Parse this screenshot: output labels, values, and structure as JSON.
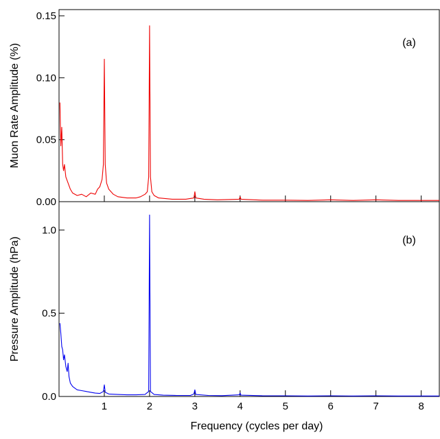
{
  "chart_data": [
    {
      "type": "line",
      "panel_tag": "(a)",
      "ylabel": "Muon Rate Amplitude (%)",
      "xlabel": "",
      "xlim": [
        0.0,
        8.4
      ],
      "ylim": [
        0.0,
        0.155
      ],
      "grid": false,
      "color": "#ee0000",
      "yticks": [
        {
          "value": 0.0,
          "label": "0.00"
        },
        {
          "value": 0.05,
          "label": "0.05"
        },
        {
          "value": 0.1,
          "label": "0.10"
        },
        {
          "value": 0.15,
          "label": "0.15"
        }
      ],
      "xticks": [
        1,
        2,
        3,
        4,
        5,
        6,
        7,
        8
      ],
      "series": [
        {
          "x": [
            0.02,
            0.04,
            0.06,
            0.08,
            0.1,
            0.12,
            0.15,
            0.2,
            0.25,
            0.3,
            0.4,
            0.5,
            0.6,
            0.7,
            0.8,
            0.85,
            0.9,
            0.95,
            0.98,
            1.0,
            1.02,
            1.05,
            1.1,
            1.2,
            1.3,
            1.5,
            1.7,
            1.8,
            1.9,
            1.95,
            1.98,
            2.0,
            2.02,
            2.05,
            2.1,
            2.2,
            2.5,
            2.8,
            2.98,
            3.0,
            3.02,
            3.2,
            3.5,
            3.98,
            4.0,
            4.02,
            4.5,
            5.0,
            5.5,
            6.0,
            6.5,
            7.0,
            7.5,
            8.0,
            8.4
          ],
          "y": [
            0.08,
            0.045,
            0.06,
            0.03,
            0.025,
            0.03,
            0.02,
            0.015,
            0.01,
            0.007,
            0.005,
            0.006,
            0.004,
            0.007,
            0.006,
            0.01,
            0.012,
            0.018,
            0.03,
            0.115,
            0.03,
            0.015,
            0.01,
            0.006,
            0.004,
            0.003,
            0.003,
            0.004,
            0.006,
            0.008,
            0.02,
            0.142,
            0.02,
            0.008,
            0.005,
            0.003,
            0.002,
            0.002,
            0.003,
            0.008,
            0.003,
            0.002,
            0.0015,
            0.002,
            0.004,
            0.002,
            0.0012,
            0.0012,
            0.001,
            0.0015,
            0.001,
            0.0015,
            0.001,
            0.001,
            0.001
          ]
        }
      ]
    },
    {
      "type": "line",
      "panel_tag": "(b)",
      "ylabel": "Pressure Amplitude (hPa)",
      "xlabel": "Frequency (cycles per day)",
      "xlim": [
        0.0,
        8.4
      ],
      "ylim": [
        0.0,
        1.17
      ],
      "grid": false,
      "color": "#0000ee",
      "yticks": [
        {
          "value": 0.0,
          "label": "0.0"
        },
        {
          "value": 0.5,
          "label": "0.5"
        },
        {
          "value": 1.0,
          "label": "1.0"
        }
      ],
      "xticks": [
        1,
        2,
        3,
        4,
        5,
        6,
        7,
        8
      ],
      "series": [
        {
          "x": [
            0.02,
            0.04,
            0.06,
            0.08,
            0.1,
            0.12,
            0.15,
            0.18,
            0.2,
            0.22,
            0.25,
            0.3,
            0.35,
            0.4,
            0.5,
            0.6,
            0.7,
            0.8,
            0.9,
            0.98,
            1.0,
            1.02,
            1.1,
            1.3,
            1.5,
            1.7,
            1.9,
            1.98,
            2.0,
            2.02,
            2.1,
            2.3,
            2.6,
            2.9,
            2.98,
            3.0,
            3.02,
            3.3,
            3.6,
            3.98,
            4.0,
            4.02,
            4.5,
            5.0,
            5.5,
            6.0,
            6.5,
            7.0,
            7.5,
            8.0,
            8.4
          ],
          "y": [
            0.44,
            0.38,
            0.3,
            0.28,
            0.22,
            0.25,
            0.18,
            0.15,
            0.2,
            0.12,
            0.08,
            0.06,
            0.05,
            0.04,
            0.035,
            0.03,
            0.025,
            0.02,
            0.018,
            0.03,
            0.07,
            0.025,
            0.015,
            0.012,
            0.01,
            0.01,
            0.012,
            0.03,
            1.09,
            0.03,
            0.012,
            0.008,
            0.006,
            0.006,
            0.015,
            0.04,
            0.012,
            0.006,
            0.005,
            0.01,
            0.02,
            0.008,
            0.004,
            0.004,
            0.003,
            0.004,
            0.003,
            0.004,
            0.003,
            0.003,
            0.003
          ]
        }
      ]
    }
  ]
}
